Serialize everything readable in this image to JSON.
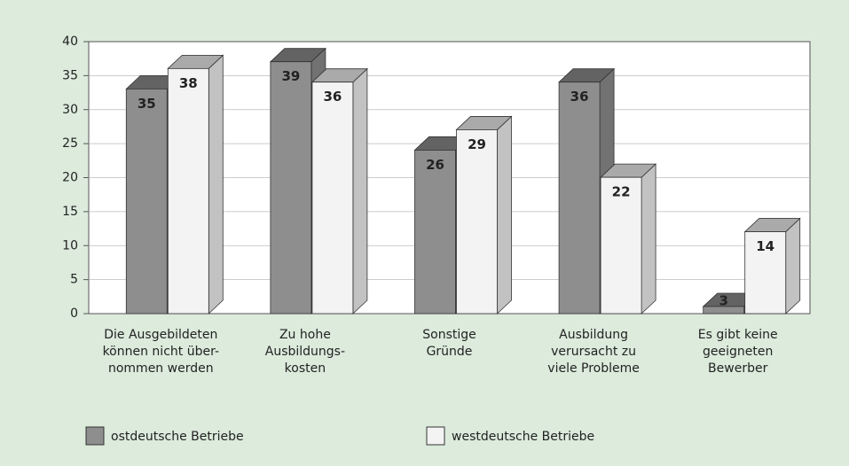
{
  "chart_data": {
    "type": "bar3d",
    "categories": [
      [
        "Die Ausgebildeten",
        "können nicht über-",
        "nommen werden"
      ],
      [
        "Zu hohe",
        "Ausbildungs-",
        "kosten"
      ],
      [
        "Sonstige",
        "Gründe"
      ],
      [
        "Ausbildung",
        "verursacht zu",
        "viele Probleme"
      ],
      [
        "Es gibt keine",
        "geeigneten",
        "Bewerber"
      ]
    ],
    "series": [
      {
        "name": "ostdeutsche Betriebe",
        "color": "#8e8e8e",
        "values": [
          35,
          39,
          26,
          36,
          3
        ]
      },
      {
        "name": "westdeutsche Betriebe",
        "color": "#f3f3f3",
        "values": [
          38,
          36,
          29,
          22,
          14
        ]
      }
    ],
    "ylim": [
      0,
      40
    ],
    "yticks": [
      0,
      5,
      10,
      15,
      20,
      25,
      30,
      35,
      40
    ],
    "grid": true,
    "legend": "bottom"
  }
}
